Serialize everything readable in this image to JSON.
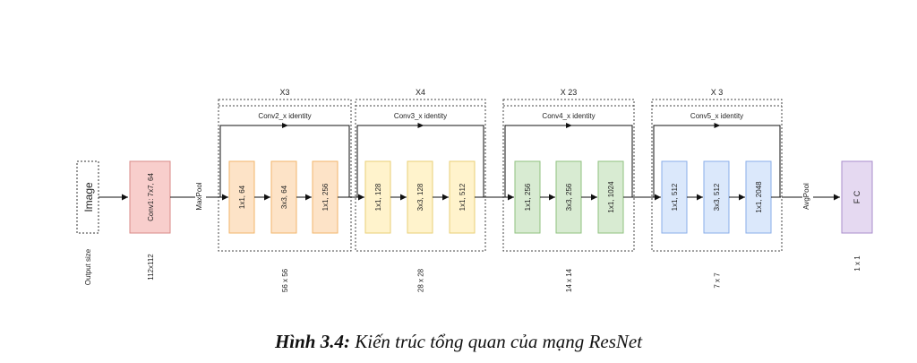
{
  "diagram": {
    "image_label": "Image",
    "output_size_label": "Output size",
    "conv1_label": "Conv1: 7x7, 64",
    "conv1_size": "112x112",
    "maxpool_label": "MaxPool",
    "avgpool_label": "AvgPool",
    "fc_label": "F C",
    "fc_size": "1 x 1",
    "stages": [
      {
        "repeat": "X3",
        "identity": "Conv2_x identity",
        "size": "56 x 56",
        "color": "#fde3c7",
        "border": "#f2b66b",
        "layers": [
          "1x1, 64",
          "3x3, 64",
          "1x1, 256"
        ]
      },
      {
        "repeat": "X4",
        "identity": "Conv3_x identity",
        "size": "28 x 28",
        "color": "#fff3cc",
        "border": "#e8cf76",
        "layers": [
          "1x1, 128",
          "3x3, 128",
          "1x1, 512"
        ]
      },
      {
        "repeat": "X 23",
        "identity": "Conv4_x identity",
        "size": "14 x 14",
        "color": "#d8ebd2",
        "border": "#8fc27f",
        "layers": [
          "1x1, 256",
          "3x3, 256",
          "1x1, 1024"
        ]
      },
      {
        "repeat": "X 3",
        "identity": "Conv5_x identity",
        "size": "7 x 7",
        "color": "#dbe8fb",
        "border": "#8aaee8",
        "layers": [
          "1x1, 512",
          "3x3, 512",
          "1x1, 2048"
        ]
      }
    ],
    "colors": {
      "conv1_fill": "#f8cecc",
      "conv1_border": "#d88a87",
      "fc_fill": "#e5d9f1",
      "fc_border": "#a98dcc",
      "line": "#111111"
    }
  },
  "caption": {
    "label": "Hình 3.4:",
    "text": "Kiến trúc tổng quan của mạng ResNet"
  }
}
